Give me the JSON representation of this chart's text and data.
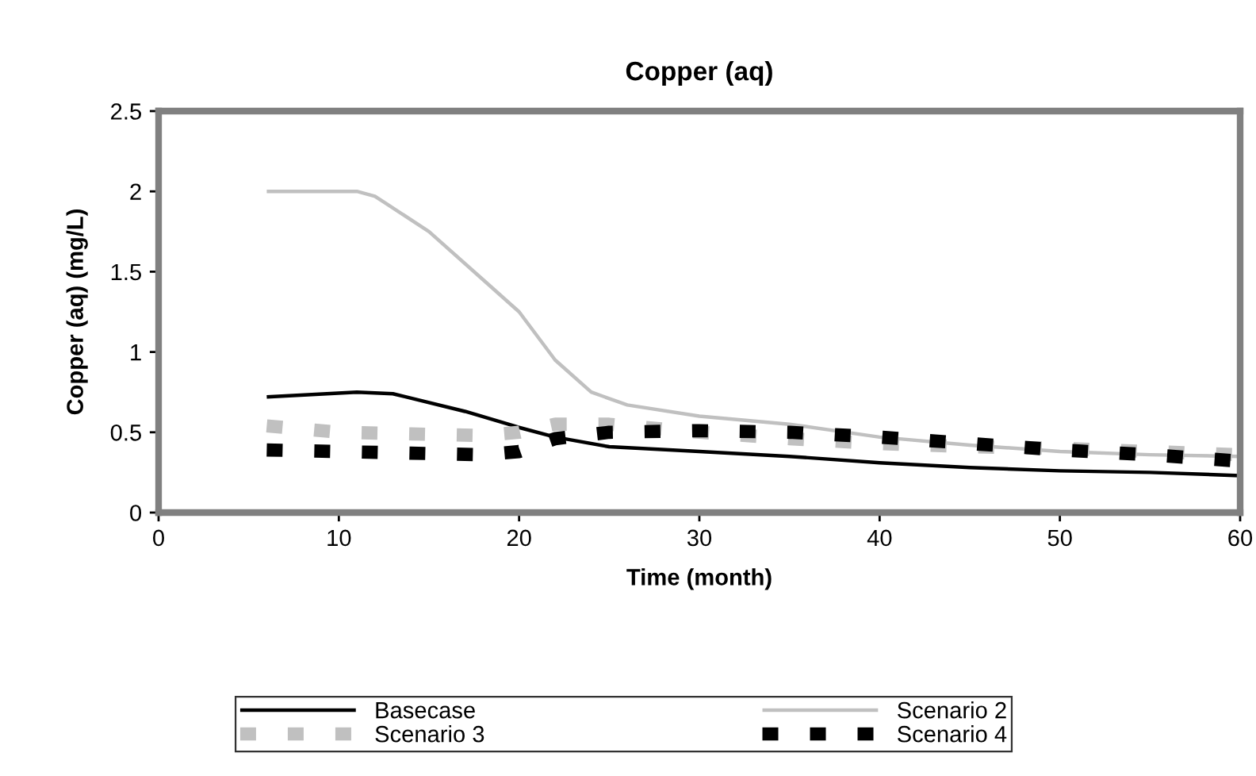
{
  "chart_data": {
    "type": "line",
    "title": "Copper (aq)",
    "xlabel": "Time (month)",
    "ylabel": "Copper (aq) (mg/L)",
    "xlim": [
      0,
      60
    ],
    "xticks": [
      0,
      10,
      20,
      30,
      40,
      50,
      60
    ],
    "ylim": [
      0,
      2.5
    ],
    "yticks": [
      0,
      0.5,
      1,
      1.5,
      2,
      2.5
    ],
    "grid": false,
    "legend": "bottom",
    "marker": "none",
    "series": [
      {
        "name": "Basecase",
        "color": "#000000",
        "line_style": "solid",
        "x": [
          6,
          11,
          13,
          17,
          20,
          22,
          25,
          30,
          35,
          40,
          45,
          50,
          55,
          60
        ],
        "values": [
          0.72,
          0.75,
          0.74,
          0.63,
          0.53,
          0.47,
          0.41,
          0.38,
          0.35,
          0.31,
          0.28,
          0.26,
          0.25,
          0.23
        ]
      },
      {
        "name": "Scenario 2",
        "color": "#c0c0c0",
        "line_style": "solid",
        "x": [
          6,
          11,
          12,
          15,
          18,
          20,
          22,
          24,
          26,
          30,
          35,
          40,
          45,
          50,
          55,
          60
        ],
        "values": [
          2.0,
          2.0,
          1.97,
          1.75,
          1.45,
          1.25,
          0.95,
          0.75,
          0.67,
          0.6,
          0.55,
          0.47,
          0.42,
          0.38,
          0.36,
          0.35
        ]
      },
      {
        "name": "Scenario 3",
        "color": "#c0c0c0",
        "line_style": "dashed",
        "x": [
          6,
          10,
          14,
          18,
          20,
          22,
          25,
          30,
          35,
          40,
          45,
          50,
          55,
          60
        ],
        "values": [
          0.54,
          0.5,
          0.49,
          0.48,
          0.5,
          0.55,
          0.55,
          0.5,
          0.46,
          0.43,
          0.41,
          0.4,
          0.38,
          0.36
        ]
      },
      {
        "name": "Scenario 4",
        "color": "#000000",
        "line_style": "dashed",
        "x": [
          6,
          10,
          14,
          18,
          20,
          22,
          25,
          30,
          35,
          40,
          45,
          50,
          55,
          60
        ],
        "values": [
          0.39,
          0.38,
          0.37,
          0.36,
          0.38,
          0.46,
          0.5,
          0.51,
          0.5,
          0.47,
          0.43,
          0.39,
          0.36,
          0.32
        ]
      }
    ]
  }
}
